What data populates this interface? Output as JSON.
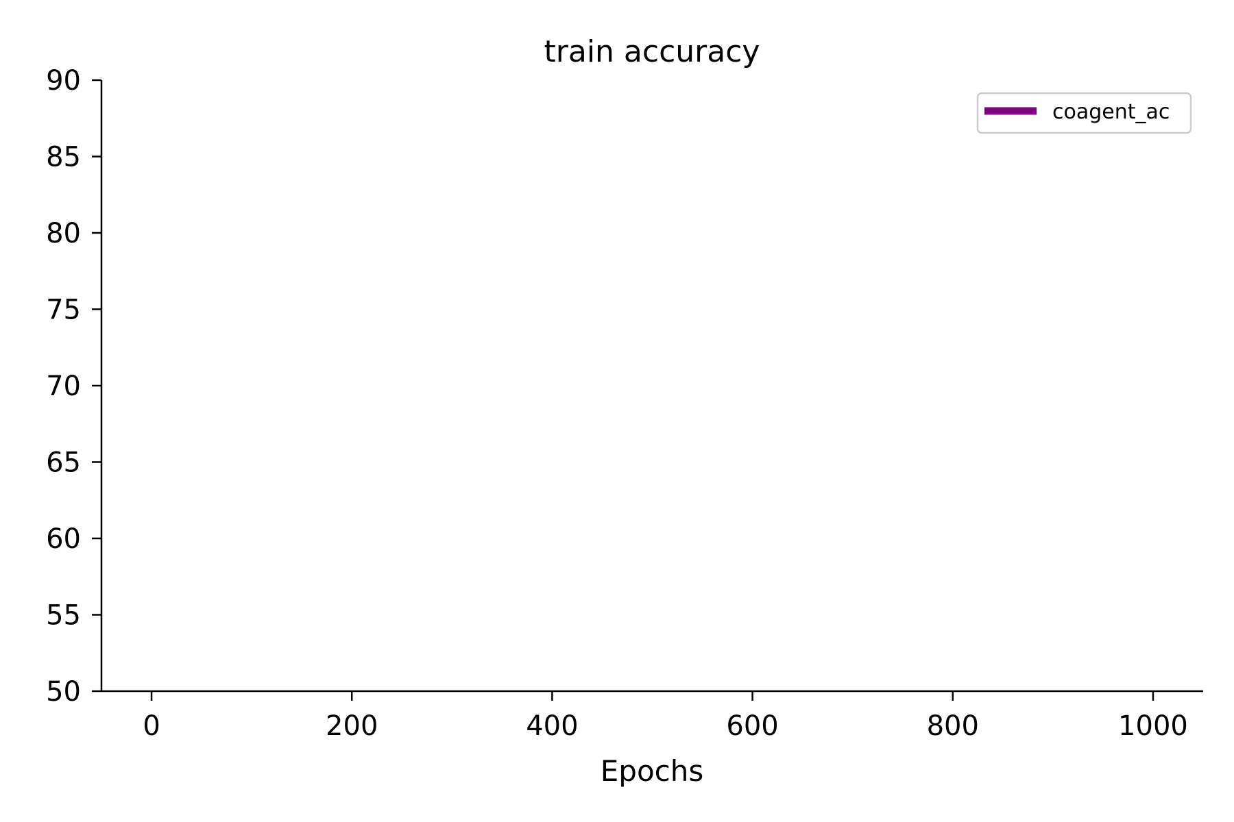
{
  "chart_data": {
    "type": "line",
    "title": "train accuracy",
    "xlabel": "Epochs",
    "ylabel": "",
    "xlim": [
      -50,
      1050
    ],
    "ylim": [
      50,
      90
    ],
    "x_ticks": [
      0,
      200,
      400,
      600,
      800,
      1000
    ],
    "y_ticks": [
      50,
      55,
      60,
      65,
      70,
      75,
      80,
      85,
      90
    ],
    "x_tick_labels": [
      "0",
      "200",
      "400",
      "600",
      "800",
      "1000"
    ],
    "y_tick_labels": [
      "50",
      "55",
      "60",
      "65",
      "70",
      "75",
      "80",
      "85",
      "90"
    ],
    "grid": false,
    "legend_position": "top-right",
    "series": [
      {
        "name": "coagent_ac",
        "color": "#800080",
        "x": [],
        "y": []
      }
    ]
  }
}
